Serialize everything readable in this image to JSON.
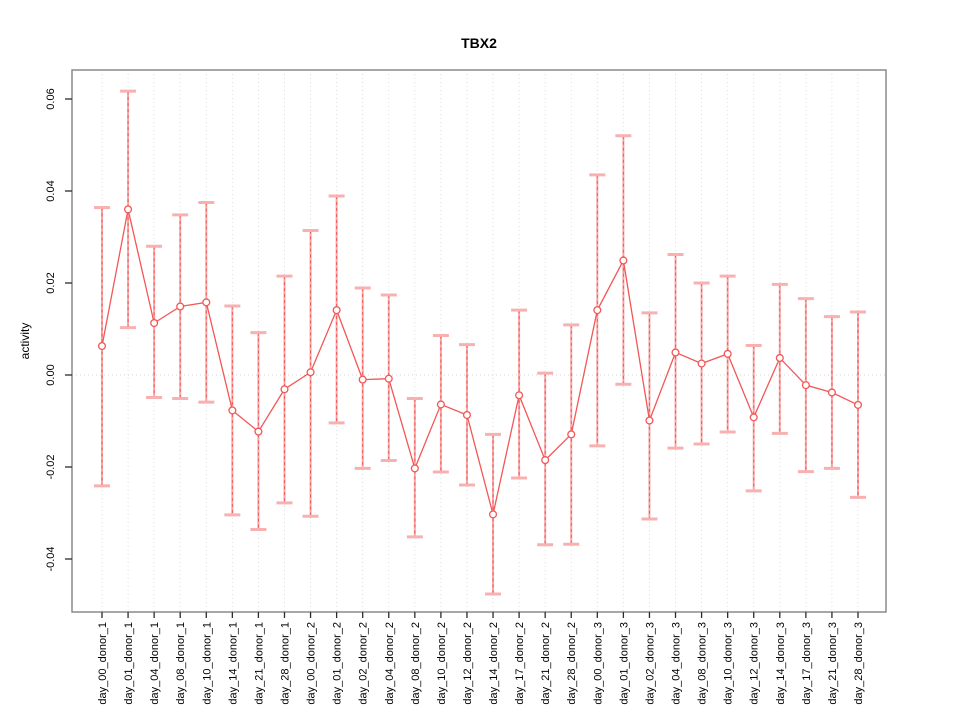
{
  "chart_data": {
    "type": "line",
    "title": "TBX2",
    "xlabel": "",
    "ylabel": "activity",
    "legend": "none",
    "grid": "vertical dotted gridline at every category; dotted horizontal line at y=0 only",
    "error_bars": true,
    "marker": "open-circle",
    "ylim": [
      -0.052,
      0.066
    ],
    "y_ticks": [
      0.06,
      0.04,
      0.02,
      0.0,
      -0.02,
      -0.04
    ],
    "y_tick_labels": [
      "0.06",
      "0.04",
      "0.02",
      "0.00",
      "-0.02",
      "-0.04"
    ],
    "categories": [
      "day_00_donor_1",
      "day_01_donor_1",
      "day_04_donor_1",
      "day_08_donor_1",
      "day_10_donor_1",
      "day_14_donor_1",
      "day_21_donor_1",
      "day_28_donor_1",
      "day_00_donor_2",
      "day_01_donor_2",
      "day_02_donor_2",
      "day_04_donor_2",
      "day_08_donor_2",
      "day_10_donor_2",
      "day_12_donor_2",
      "day_14_donor_2",
      "day_17_donor_2",
      "day_21_donor_2",
      "day_28_donor_2",
      "day_00_donor_3",
      "day_01_donor_3",
      "day_02_donor_3",
      "day_04_donor_3",
      "day_08_donor_3",
      "day_10_donor_3",
      "day_12_donor_3",
      "day_14_donor_3",
      "day_17_donor_3",
      "day_21_donor_3",
      "day_28_donor_3"
    ],
    "series": [
      {
        "name": "activity",
        "values": [
          0.0063,
          0.036,
          0.0113,
          0.0149,
          0.0158,
          -0.0077,
          -0.0123,
          -0.0031,
          0.0006,
          0.0141,
          -0.001,
          -0.0008,
          -0.0203,
          -0.0064,
          -0.0087,
          -0.0303,
          -0.0044,
          -0.0185,
          -0.0129,
          0.0141,
          0.0249,
          -0.0099,
          0.0049,
          0.0025,
          0.0046,
          -0.0092,
          0.0037,
          -0.0022,
          -0.0038,
          -0.0065
        ],
        "error_low": [
          -0.0241,
          0.0103,
          -0.0049,
          -0.0051,
          -0.0059,
          -0.0304,
          -0.0336,
          -0.0278,
          -0.0307,
          -0.0104,
          -0.0203,
          -0.0186,
          -0.0352,
          -0.0211,
          -0.0239,
          -0.0476,
          -0.0224,
          -0.0369,
          -0.0368,
          -0.0154,
          -0.002,
          -0.0313,
          -0.0159,
          -0.015,
          -0.0124,
          -0.0252,
          -0.0127,
          -0.021,
          -0.0203,
          -0.0266
        ],
        "error_high": [
          0.0364,
          0.0617,
          0.028,
          0.0348,
          0.0375,
          0.015,
          0.0092,
          0.0215,
          0.0314,
          0.0389,
          0.0189,
          0.0174,
          -0.0051,
          0.0086,
          0.0066,
          -0.0129,
          0.0141,
          0.0004,
          0.0109,
          0.0435,
          0.052,
          0.0135,
          0.0262,
          0.02,
          0.0215,
          0.0064,
          0.0197,
          0.0166,
          0.0127,
          0.0137
        ]
      }
    ],
    "colors": {
      "series_line": "#f25757",
      "marker_stroke": "#f25757",
      "marker_fill": "#ffffff",
      "error_bar": "#f7a6a6",
      "error_bar_dash": "#f25757",
      "error_cap": "#f9b0b0",
      "gridline": "#dcdcdc",
      "zero_line": "#d4d4d4",
      "plot_border": "#8a8a8a",
      "tick": "#2b2b2b",
      "text": "#000000"
    }
  }
}
